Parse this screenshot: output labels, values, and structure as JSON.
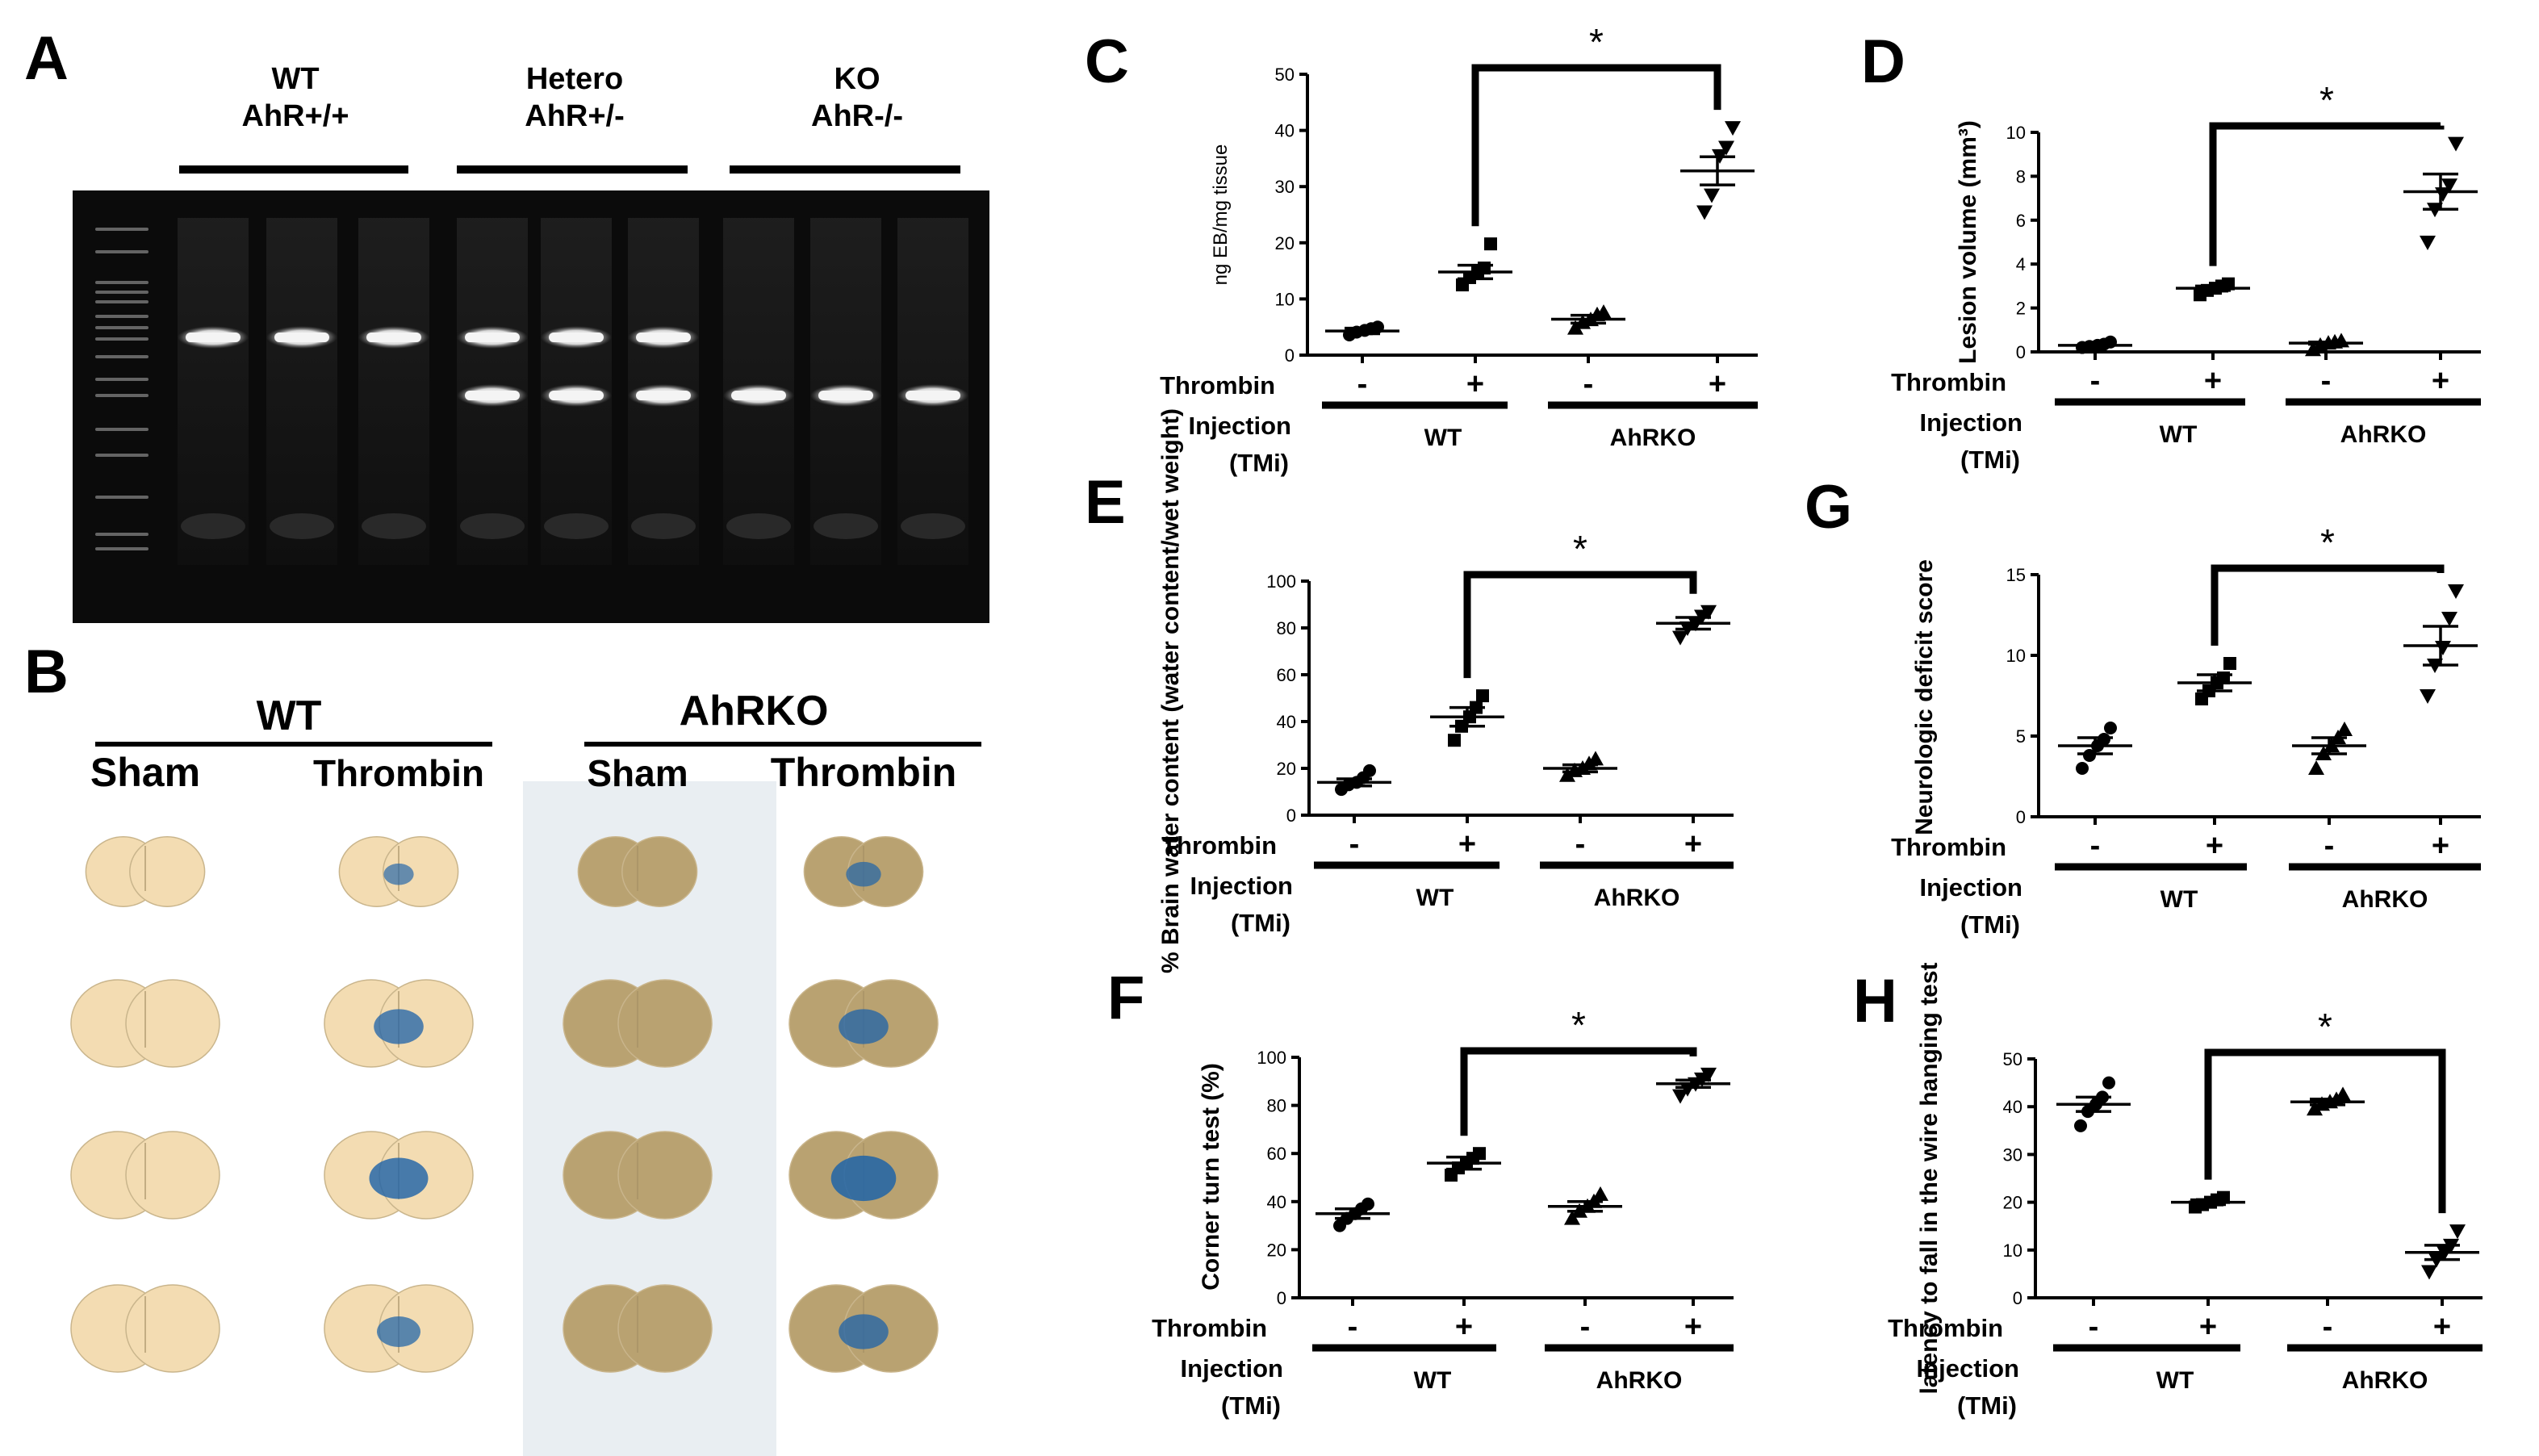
{
  "panel_letters": {
    "A": "A",
    "B": "B",
    "C": "C",
    "D": "D",
    "E": "E",
    "F": "F",
    "G": "G",
    "H": "H"
  },
  "gel": {
    "groups": [
      {
        "line1": "WT",
        "line2": "AhR+/+"
      },
      {
        "line1": "Hetero",
        "line2": "AhR+/-"
      },
      {
        "line1": "KO",
        "line2": "AhR-/-"
      }
    ],
    "lanes": [
      {
        "genotype": "WT",
        "bands": [
          "upper"
        ]
      },
      {
        "genotype": "WT",
        "bands": [
          "upper"
        ]
      },
      {
        "genotype": "WT",
        "bands": [
          "upper"
        ]
      },
      {
        "genotype": "Hetero",
        "bands": [
          "upper",
          "lower"
        ]
      },
      {
        "genotype": "Hetero",
        "bands": [
          "upper",
          "lower"
        ]
      },
      {
        "genotype": "Hetero",
        "bands": [
          "upper",
          "lower"
        ]
      },
      {
        "genotype": "KO",
        "bands": [
          "lower"
        ]
      },
      {
        "genotype": "KO",
        "bands": [
          "lower"
        ]
      },
      {
        "genotype": "KO",
        "bands": [
          "lower"
        ]
      }
    ]
  },
  "brains": {
    "groups": [
      "WT",
      "AhRKO"
    ],
    "columns": [
      "Sham",
      "Thrombin",
      "Sham",
      "Thrombin"
    ],
    "stain_color": "#1f63a8",
    "wt_tissue_color": "#f3dcb2",
    "ko_tissue_color": "#b9a271",
    "rows": 4,
    "wt_thrombin_stain": [
      0.35,
      0.6,
      0.75,
      0.5
    ],
    "ko_thrombin_stain": [
      0.45,
      0.6,
      0.85,
      0.6
    ]
  },
  "xaxis": {
    "row_label": "Thrombin",
    "signs": [
      "-",
      "+",
      "-",
      "+"
    ],
    "injection_label": "Injection",
    "tmi_label": "(TMi)",
    "groups": [
      "WT",
      "AhRKO"
    ]
  },
  "chart_data": [
    {
      "panel": "C",
      "type": "scatter",
      "ylabel": "ng EB/mg tissue",
      "ylim": [
        0,
        50
      ],
      "yticks": [
        0,
        10,
        20,
        30,
        40,
        50
      ],
      "markers": [
        "circle",
        "square",
        "triangle",
        "triangle-down"
      ],
      "groups": [
        {
          "mean": 4.3,
          "sem": 0.5,
          "points": [
            3.6,
            4.1,
            4.4,
            4.7,
            5.0
          ]
        },
        {
          "mean": 14.8,
          "sem": 1.2,
          "points": [
            12.5,
            13.8,
            14.7,
            15.5,
            19.8
          ]
        },
        {
          "mean": 6.4,
          "sem": 0.7,
          "points": [
            4.8,
            5.8,
            6.3,
            7.2,
            7.6
          ]
        },
        {
          "mean": 32.8,
          "sem": 2.5,
          "points": [
            25.5,
            28.5,
            35.5,
            37.0,
            40.5
          ]
        }
      ],
      "significance": {
        "from": 1,
        "to": 3,
        "label": "*"
      }
    },
    {
      "panel": "D",
      "type": "scatter",
      "ylabel": "Lesion volume (mm³)",
      "ylim": [
        0,
        10
      ],
      "yticks": [
        0,
        2,
        4,
        6,
        8,
        10
      ],
      "markers": [
        "circle",
        "square",
        "triangle",
        "triangle-down"
      ],
      "groups": [
        {
          "mean": 0.3,
          "sem": 0.05,
          "points": [
            0.2,
            0.25,
            0.3,
            0.35,
            0.45
          ]
        },
        {
          "mean": 2.9,
          "sem": 0.1,
          "points": [
            2.6,
            2.8,
            2.9,
            3.0,
            3.1
          ]
        },
        {
          "mean": 0.4,
          "sem": 0.05,
          "points": [
            0.1,
            0.3,
            0.4,
            0.45,
            0.5
          ]
        },
        {
          "mean": 7.3,
          "sem": 0.8,
          "points": [
            5.0,
            6.5,
            7.2,
            7.6,
            9.5
          ]
        }
      ],
      "significance": {
        "from": 1,
        "to": 3,
        "label": "*"
      }
    },
    {
      "panel": "E",
      "type": "scatter",
      "ylabel": "% Brain water content (water content/wet weight)",
      "ylim": [
        0,
        100
      ],
      "yticks": [
        0,
        20,
        40,
        60,
        80,
        100
      ],
      "markers": [
        "circle",
        "square",
        "triangle",
        "triangle-down"
      ],
      "groups": [
        {
          "mean": 14,
          "sem": 1.5,
          "points": [
            11,
            13,
            14,
            16,
            19
          ]
        },
        {
          "mean": 42,
          "sem": 4,
          "points": [
            32,
            38,
            42,
            46,
            51
          ]
        },
        {
          "mean": 20,
          "sem": 1.5,
          "points": [
            17,
            19,
            20,
            22,
            24
          ]
        },
        {
          "mean": 82,
          "sem": 2.5,
          "points": [
            76,
            80,
            82,
            85,
            87
          ]
        }
      ],
      "significance": {
        "from": 1,
        "to": 3,
        "label": "*"
      }
    },
    {
      "panel": "G",
      "type": "scatter",
      "ylabel": "Neurologic deficit score",
      "ylim": [
        0,
        15
      ],
      "yticks": [
        0,
        5,
        10,
        15
      ],
      "markers": [
        "circle",
        "square",
        "triangle",
        "triangle-down"
      ],
      "groups": [
        {
          "mean": 4.4,
          "sem": 0.5,
          "points": [
            3.0,
            3.8,
            4.4,
            4.8,
            5.5
          ]
        },
        {
          "mean": 8.3,
          "sem": 0.5,
          "points": [
            7.3,
            7.8,
            8.3,
            8.6,
            9.5
          ]
        },
        {
          "mean": 4.4,
          "sem": 0.5,
          "points": [
            3.0,
            3.9,
            4.4,
            4.9,
            5.4
          ]
        },
        {
          "mean": 10.6,
          "sem": 1.2,
          "points": [
            7.5,
            9.4,
            10.5,
            12.3,
            14.0
          ]
        }
      ],
      "significance": {
        "from": 1,
        "to": 3,
        "label": "*"
      }
    },
    {
      "panel": "F",
      "type": "scatter",
      "ylabel": "Corner turn test (%)",
      "ylim": [
        0,
        100
      ],
      "yticks": [
        0,
        20,
        40,
        60,
        80,
        100
      ],
      "markers": [
        "circle",
        "square",
        "triangle",
        "triangle-down"
      ],
      "groups": [
        {
          "mean": 35,
          "sem": 2,
          "points": [
            30,
            33,
            35,
            37,
            39
          ]
        },
        {
          "mean": 56,
          "sem": 2.5,
          "points": [
            51,
            54,
            56,
            58,
            60
          ]
        },
        {
          "mean": 38,
          "sem": 2,
          "points": [
            33,
            36,
            38,
            40,
            43
          ]
        },
        {
          "mean": 89,
          "sem": 1.5,
          "points": [
            84,
            87,
            89,
            91,
            93
          ]
        }
      ],
      "significance": {
        "from": 1,
        "to": 3,
        "label": "*"
      }
    },
    {
      "panel": "H",
      "type": "scatter",
      "ylabel": "latency to fall in the wire hanging test",
      "ylim": [
        0,
        50
      ],
      "yticks": [
        0,
        10,
        20,
        30,
        40,
        50
      ],
      "markers": [
        "circle",
        "square",
        "triangle",
        "triangle-down"
      ],
      "groups": [
        {
          "mean": 40.5,
          "sem": 1.5,
          "points": [
            36,
            39,
            40.5,
            42,
            45
          ]
        },
        {
          "mean": 20,
          "sem": 0.5,
          "points": [
            19,
            19.5,
            20,
            20.5,
            21
          ]
        },
        {
          "mean": 41,
          "sem": 0.6,
          "points": [
            39.5,
            40.5,
            41,
            41.5,
            42.5
          ]
        },
        {
          "mean": 9.5,
          "sem": 1.5,
          "points": [
            5.5,
            8.0,
            9.5,
            11.0,
            14.0
          ]
        }
      ],
      "significance": {
        "from": 1,
        "to": 3,
        "label": "*"
      }
    }
  ]
}
